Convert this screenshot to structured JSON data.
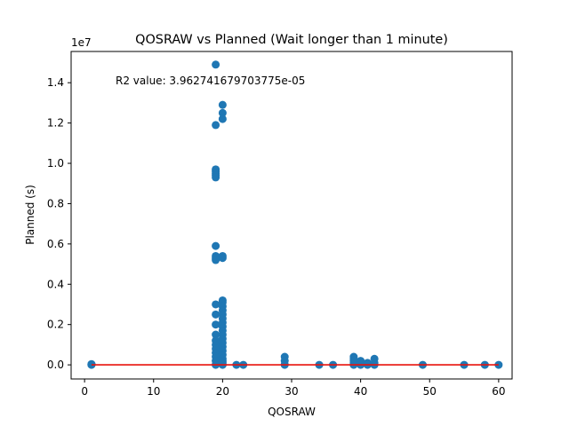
{
  "chart_data": {
    "type": "scatter",
    "title": "QOSRAW vs Planned (Wait longer than 1 minute)",
    "xlabel": "QOSRAW",
    "ylabel": "Planned (s)",
    "offset_label": "1e7",
    "annotation": "R2 value: 3.962741679703775e-05",
    "xlim": [
      -1.95,
      61.95
    ],
    "ylim": [
      -0.07,
      1.555
    ],
    "y_scale_note": "y values in units of 1e7 seconds",
    "xticks": [
      0,
      10,
      20,
      30,
      40,
      50,
      60
    ],
    "xtick_labels": [
      "0",
      "10",
      "20",
      "30",
      "40",
      "50",
      "60"
    ],
    "yticks": [
      0.0,
      0.2,
      0.4,
      0.6,
      0.8,
      1.0,
      1.2,
      1.4
    ],
    "ytick_labels": [
      "0.0",
      "0.2",
      "0.4",
      "0.6",
      "0.8",
      "1.0",
      "1.2",
      "1.4"
    ],
    "grid": false,
    "colors": {
      "points": "#1f77b4",
      "fit_line": "#e8120c"
    },
    "series": [
      {
        "type": "scatter",
        "points": [
          [
            1,
            0.0
          ],
          [
            1,
            0.001
          ],
          [
            1,
            0.002
          ],
          [
            1,
            0.004
          ],
          [
            19,
            1.49
          ],
          [
            19,
            1.19
          ],
          [
            19,
            0.97
          ],
          [
            19,
            0.96
          ],
          [
            19,
            0.95
          ],
          [
            19,
            0.94
          ],
          [
            19,
            0.93
          ],
          [
            19,
            0.59
          ],
          [
            19,
            0.54
          ],
          [
            19,
            0.53
          ],
          [
            19,
            0.52
          ],
          [
            19,
            0.3
          ],
          [
            19,
            0.25
          ],
          [
            19,
            0.2
          ],
          [
            19,
            0.15
          ],
          [
            19,
            0.12
          ],
          [
            19,
            0.1
          ],
          [
            19,
            0.08
          ],
          [
            19,
            0.06
          ],
          [
            19,
            0.04
          ],
          [
            19,
            0.02
          ],
          [
            19,
            0.0
          ],
          [
            20,
            1.29
          ],
          [
            20,
            1.25
          ],
          [
            20,
            1.22
          ],
          [
            20,
            0.54
          ],
          [
            20,
            0.53
          ],
          [
            20,
            0.32
          ],
          [
            20,
            0.31
          ],
          [
            20,
            0.29
          ],
          [
            20,
            0.27
          ],
          [
            20,
            0.25
          ],
          [
            20,
            0.23
          ],
          [
            20,
            0.21
          ],
          [
            20,
            0.19
          ],
          [
            20,
            0.17
          ],
          [
            20,
            0.15
          ],
          [
            20,
            0.13
          ],
          [
            20,
            0.11
          ],
          [
            20,
            0.09
          ],
          [
            20,
            0.07
          ],
          [
            20,
            0.05
          ],
          [
            20,
            0.03
          ],
          [
            20,
            0.02
          ],
          [
            20,
            0.01
          ],
          [
            20,
            0.0
          ],
          [
            22,
            0.0
          ],
          [
            23,
            0.0
          ],
          [
            29,
            0.04
          ],
          [
            29,
            0.02
          ],
          [
            29,
            0.0
          ],
          [
            34,
            0.0
          ],
          [
            36,
            0.0
          ],
          [
            39,
            0.04
          ],
          [
            39,
            0.03
          ],
          [
            39,
            0.02
          ],
          [
            39,
            0.01
          ],
          [
            39,
            0.0
          ],
          [
            40,
            0.02
          ],
          [
            40,
            0.0
          ],
          [
            41,
            0.01
          ],
          [
            41,
            0.0
          ],
          [
            42,
            0.03
          ],
          [
            42,
            0.01
          ],
          [
            42,
            0.0
          ],
          [
            49,
            0.0
          ],
          [
            55,
            0.0
          ],
          [
            58,
            0.0
          ],
          [
            60,
            0.0
          ]
        ]
      },
      {
        "type": "line",
        "points": [
          [
            1,
            0.0
          ],
          [
            60,
            0.0
          ]
        ]
      }
    ]
  }
}
